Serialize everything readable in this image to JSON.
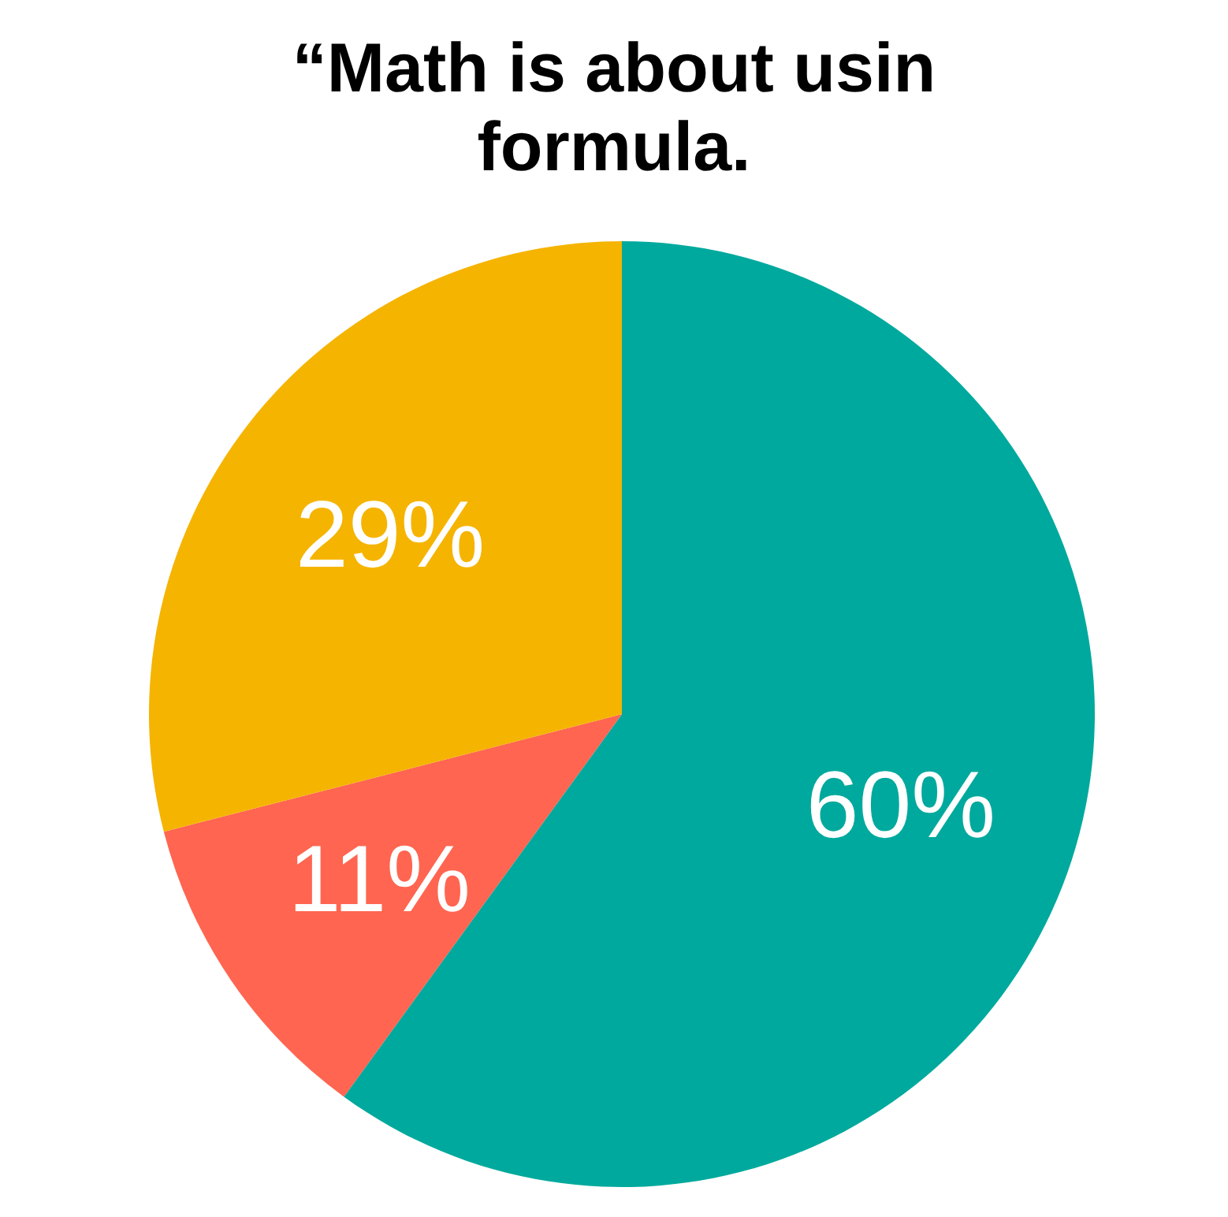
{
  "chart_data": {
    "type": "pie",
    "title": "“Math is about usin",
    "subtitle": "formula.",
    "categories": [
      null,
      null,
      null
    ],
    "values": [
      60,
      11,
      29
    ],
    "colors": [
      "#00a99d",
      "#ff6550",
      "#f5b400"
    ],
    "value_labels": [
      "60%",
      "11%",
      "29%"
    ]
  }
}
